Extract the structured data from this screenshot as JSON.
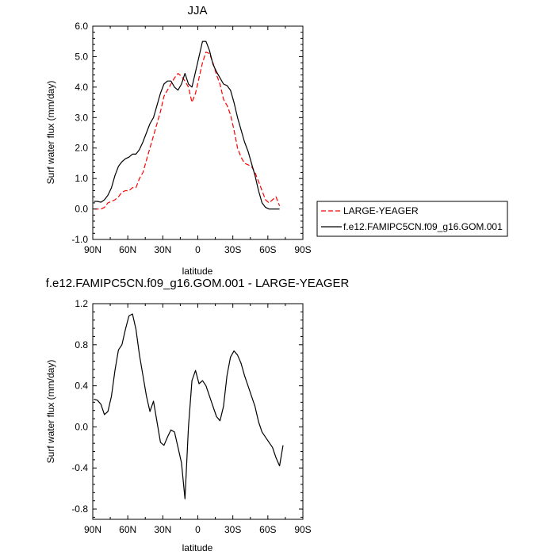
{
  "chart_data": [
    {
      "type": "line",
      "title": "JJA",
      "xlabel": "latitude",
      "ylabel": "Surf water flux (mm/day)",
      "xlim": [
        90,
        -90
      ],
      "ylim": [
        -1.0,
        6.0
      ],
      "xticks": [
        90,
        60,
        30,
        0,
        -30,
        -60,
        -90
      ],
      "xtick_labels": [
        "90N",
        "60N",
        "30N",
        "0",
        "30S",
        "60S",
        "90S"
      ],
      "yticks": [
        -1.0,
        0.0,
        1.0,
        2.0,
        3.0,
        4.0,
        5.0,
        6.0
      ],
      "ytick_labels": [
        "-1.0",
        "0.0",
        "1.0",
        "2.0",
        "3.0",
        "4.0",
        "5.0",
        "6.0"
      ],
      "grid": false,
      "legend_position": "outside-right",
      "x": [
        89,
        86,
        83,
        80,
        77,
        74,
        71,
        68,
        65,
        62,
        59,
        56,
        53,
        50,
        47,
        44,
        41,
        38,
        35,
        32,
        29,
        26,
        23,
        20,
        17,
        14,
        11,
        8,
        5,
        2,
        -1,
        -4,
        -7,
        -10,
        -13,
        -16,
        -19,
        -22,
        -25,
        -28,
        -31,
        -34,
        -37,
        -40,
        -43,
        -46,
        -49,
        -52,
        -55,
        -58,
        -61,
        -64,
        -67,
        -70,
        -73,
        -76,
        -79,
        -82,
        -85,
        -88
      ],
      "series": [
        {
          "name": "LARGE-YEAGER",
          "color": "#ff0000",
          "dash": "dashed",
          "values": [
            0.0,
            0.0,
            0.0,
            0.05,
            0.2,
            0.25,
            0.3,
            0.4,
            0.55,
            0.6,
            0.6,
            0.7,
            0.7,
            1.0,
            1.2,
            1.6,
            2.0,
            2.4,
            2.8,
            3.2,
            3.7,
            3.9,
            4.1,
            4.3,
            4.45,
            4.35,
            4.2,
            4.0,
            3.5,
            3.8,
            4.3,
            4.8,
            5.15,
            5.1,
            4.8,
            4.4,
            4.1,
            3.6,
            3.4,
            3.1,
            2.6,
            2.0,
            1.7,
            1.5,
            1.45,
            1.4,
            1.2,
            0.9,
            0.6,
            0.3,
            0.2,
            0.3,
            0.4,
            0.1,
            null,
            null,
            null,
            null,
            null,
            null
          ]
        },
        {
          "name": "f.e12.FAMIPC5CN.f09_g16.GOM.001",
          "color": "#000000",
          "dash": "solid",
          "values": [
            0.25,
            0.25,
            0.22,
            0.3,
            0.45,
            0.7,
            1.1,
            1.4,
            1.55,
            1.65,
            1.7,
            1.8,
            1.8,
            1.95,
            2.2,
            2.5,
            2.8,
            3.0,
            3.4,
            3.8,
            4.1,
            4.2,
            4.2,
            4.0,
            3.9,
            4.1,
            4.45,
            4.1,
            4.0,
            4.5,
            5.0,
            5.5,
            5.5,
            5.2,
            4.75,
            4.5,
            4.3,
            4.1,
            4.05,
            3.9,
            3.5,
            3.0,
            2.6,
            2.2,
            1.9,
            1.5,
            1.1,
            0.6,
            0.2,
            0.05,
            0.0,
            0.0,
            0.0,
            0.0,
            null,
            null,
            null,
            null,
            null,
            null
          ]
        }
      ]
    },
    {
      "type": "line",
      "title": "f.e12.FAMIPC5CN.f09_g16.GOM.001 - LARGE-YEAGER",
      "xlabel": "latitude",
      "ylabel": "Surf water flux (mm/day)",
      "xlim": [
        90,
        -90
      ],
      "ylim": [
        -0.9,
        1.2
      ],
      "xticks": [
        90,
        60,
        30,
        0,
        -30,
        -60,
        -90
      ],
      "xtick_labels": [
        "90N",
        "60N",
        "30N",
        "0",
        "30S",
        "60S",
        "90S"
      ],
      "yticks": [
        -0.8,
        -0.4,
        0.0,
        0.4,
        0.8,
        1.2
      ],
      "ytick_labels": [
        "-0.8",
        "-0.4",
        "0.0",
        "0.4",
        "0.8",
        "1.2"
      ],
      "grid": false,
      "x": [
        89,
        86,
        83,
        80,
        77,
        74,
        71,
        68,
        65,
        62,
        59,
        56,
        53,
        50,
        47,
        44,
        41,
        38,
        35,
        32,
        29,
        26,
        23,
        20,
        17,
        14,
        11,
        8,
        5,
        2,
        -1,
        -4,
        -7,
        -10,
        -13,
        -16,
        -19,
        -22,
        -25,
        -28,
        -31,
        -34,
        -37,
        -40,
        -43,
        -46,
        -49,
        -52,
        -55,
        -58,
        -61,
        -64,
        -67,
        -70,
        -73,
        -76,
        -79
      ],
      "series": [
        {
          "name": "",
          "color": "#000000",
          "dash": "solid",
          "values": [
            0.27,
            0.26,
            0.22,
            0.12,
            0.15,
            0.3,
            0.55,
            0.75,
            0.8,
            0.95,
            1.08,
            1.1,
            0.95,
            0.7,
            0.5,
            0.3,
            0.15,
            0.25,
            0.05,
            -0.15,
            -0.18,
            -0.1,
            -0.03,
            -0.05,
            -0.2,
            -0.35,
            -0.7,
            0.0,
            0.45,
            0.55,
            0.42,
            0.45,
            0.4,
            0.3,
            0.2,
            0.1,
            0.06,
            0.2,
            0.5,
            0.68,
            0.74,
            0.7,
            0.62,
            0.5,
            0.4,
            0.3,
            0.2,
            0.05,
            -0.05,
            -0.1,
            -0.15,
            -0.2,
            -0.3,
            -0.38,
            -0.18,
            null,
            null
          ]
        }
      ]
    }
  ]
}
